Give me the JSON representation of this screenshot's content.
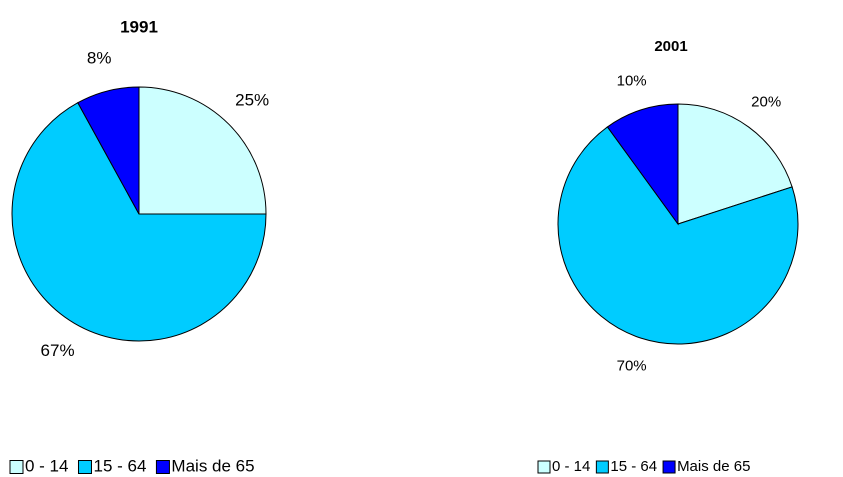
{
  "chart_data": [
    {
      "type": "pie",
      "title": "1991",
      "categories": [
        "0 - 14",
        "15 - 64",
        "Mais de 65"
      ],
      "values": [
        25,
        67,
        8
      ],
      "value_labels": [
        "25%",
        "67%",
        "8%"
      ],
      "colors": [
        "#ccffff",
        "#00ccff",
        "#0000ff"
      ]
    },
    {
      "type": "pie",
      "title": "2001",
      "categories": [
        "0 - 14",
        "15 - 64",
        "Mais de 65"
      ],
      "values": [
        20,
        70,
        10
      ],
      "value_labels": [
        "20%",
        "70%",
        "10%"
      ],
      "colors": [
        "#ccffff",
        "#00ccff",
        "#0000ff"
      ]
    }
  ]
}
